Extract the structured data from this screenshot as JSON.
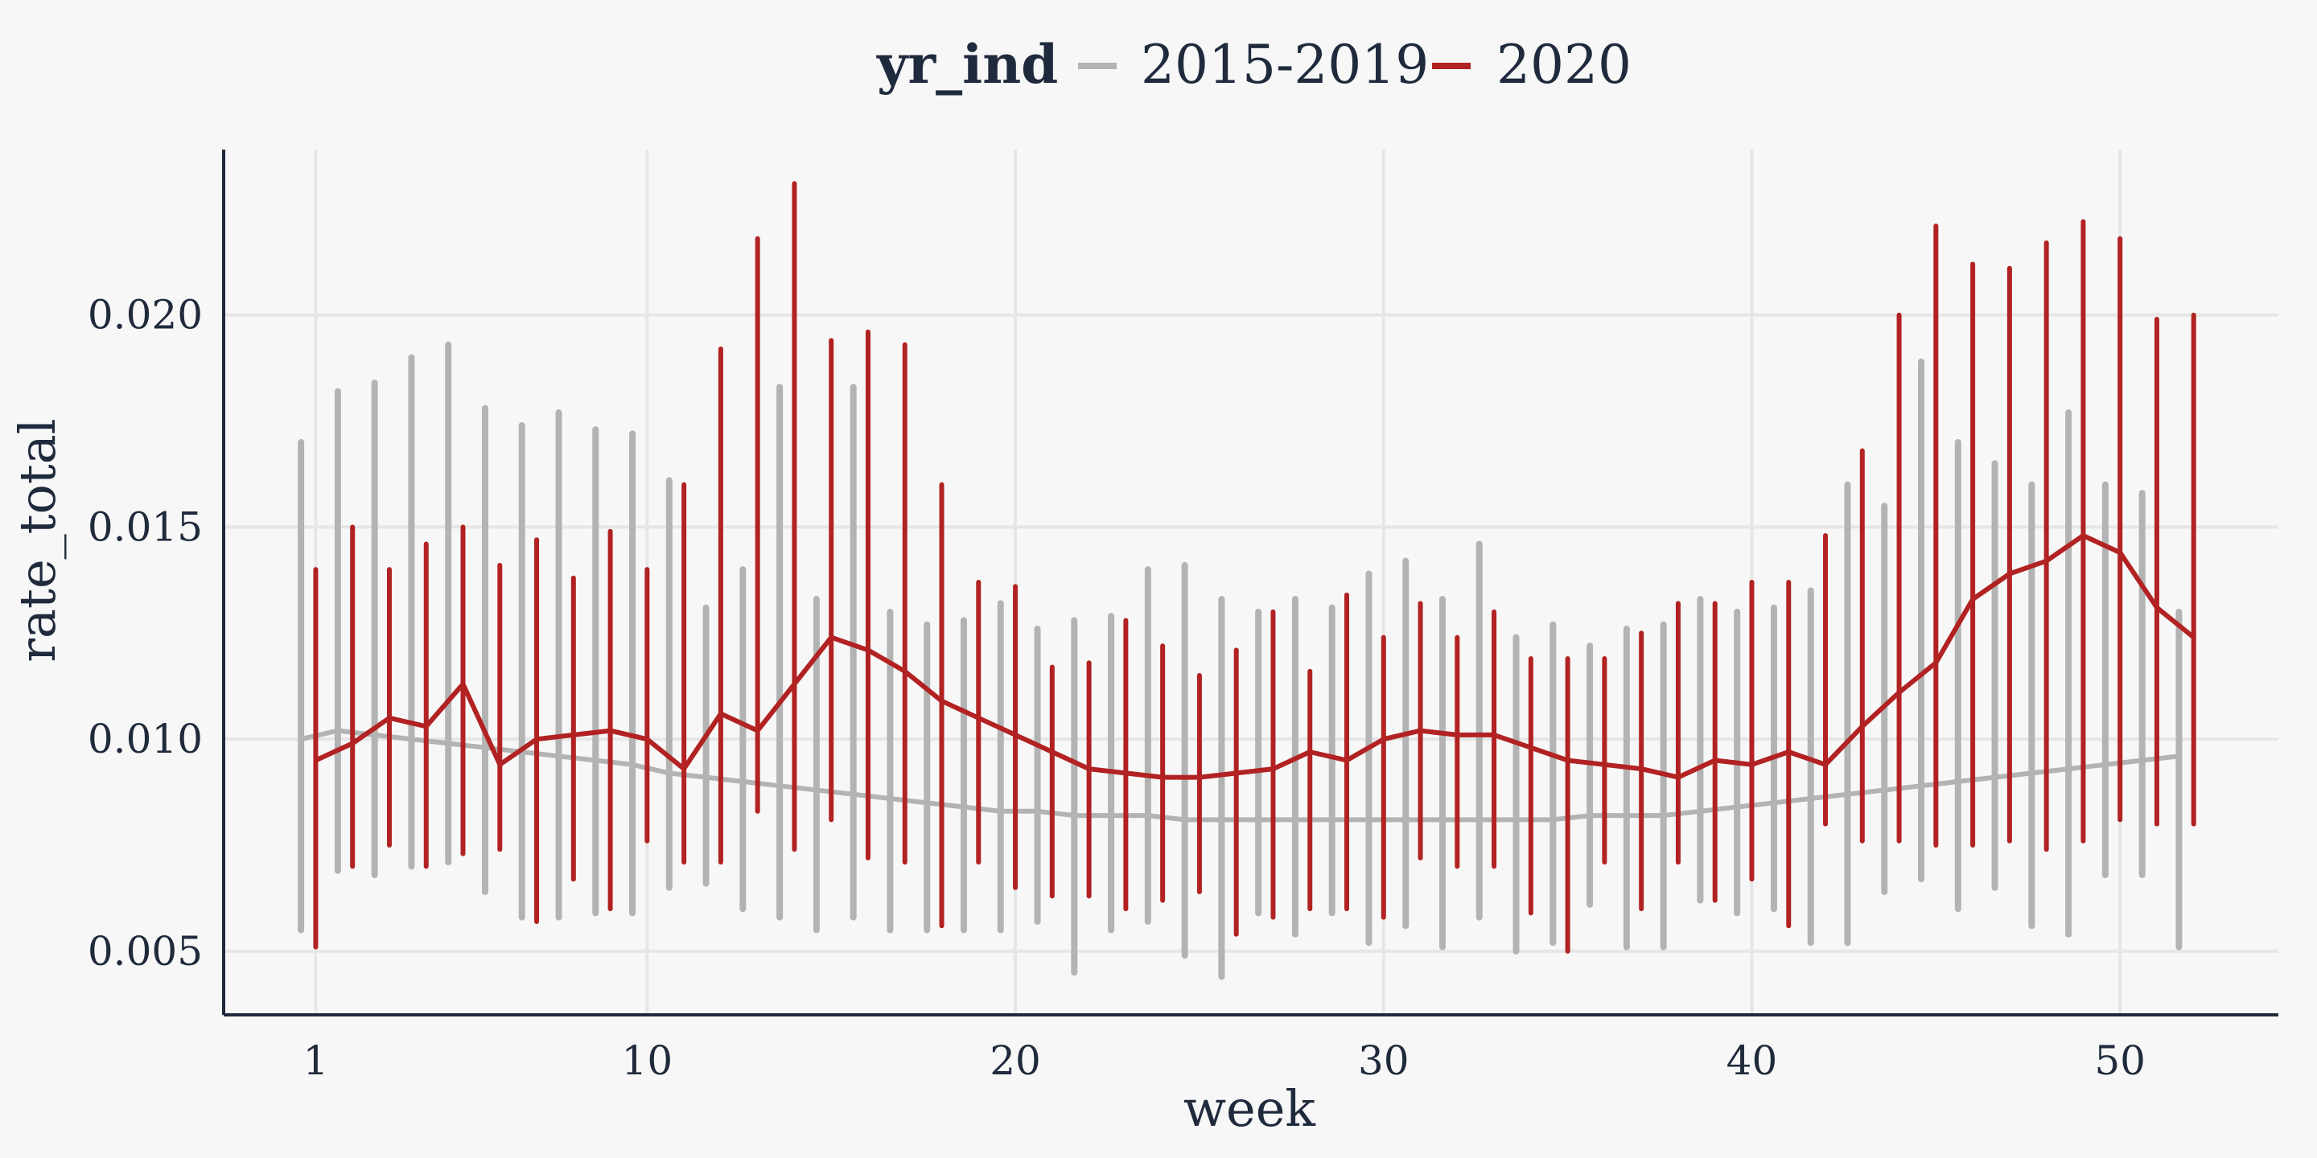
{
  "chart_data": {
    "type": "line",
    "xlabel": "week",
    "ylabel": "rate_total",
    "xlim": [
      -1.5,
      54.3
    ],
    "ylim": [
      0.0035,
      0.0239
    ],
    "x_ticks": [
      1,
      10,
      20,
      30,
      40,
      50
    ],
    "y_ticks": [
      0.005,
      0.01,
      0.015,
      0.02
    ],
    "y_tick_labels": [
      "0.005",
      "0.010",
      "0.015",
      "0.020"
    ],
    "x_tick_labels": [
      "1",
      "10",
      "20",
      "30",
      "40",
      "50"
    ],
    "grid": true,
    "legend": {
      "position": "top",
      "title": "yr_ind",
      "entries": [
        {
          "label": "2015-2019",
          "color": "#b3b3b3"
        },
        {
          "label": "2020",
          "color": "#b22222"
        }
      ]
    },
    "series": [
      {
        "name": "2015-2019",
        "color": "#b3b3b3",
        "x": [
          1,
          2,
          3,
          4,
          5,
          6,
          7,
          8,
          9,
          10,
          11,
          12,
          13,
          14,
          15,
          16,
          17,
          18,
          19,
          20,
          21,
          22,
          23,
          24,
          25,
          26,
          27,
          28,
          29,
          30,
          31,
          32,
          33,
          34,
          35,
          36,
          37,
          38,
          39,
          40,
          41,
          42,
          43,
          44,
          45,
          46,
          47,
          48,
          49,
          50,
          51,
          52
        ],
        "mean": [
          0.01,
          0.0102,
          0.0101,
          0.01,
          0.0099,
          0.0098,
          0.0097,
          0.0096,
          0.0095,
          0.0094,
          0.0092,
          0.0091,
          0.009,
          0.0089,
          0.0088,
          0.0087,
          0.0086,
          0.0085,
          0.0084,
          0.0083,
          0.0083,
          0.0082,
          0.0082,
          0.0082,
          0.0081,
          0.0081,
          0.0081,
          0.0081,
          0.0081,
          0.0081,
          0.0081,
          0.0081,
          0.0081,
          0.0081,
          0.0081,
          0.0082,
          0.0082,
          0.0082,
          0.0083,
          0.0084,
          0.0085,
          0.0086,
          0.0087,
          0.0088,
          0.0089,
          0.009,
          0.0091,
          0.0092,
          0.0093,
          0.0094,
          0.0095,
          0.0096
        ],
        "low": [
          0.0055,
          0.0069,
          0.0068,
          0.007,
          0.0071,
          0.0064,
          0.0058,
          0.0058,
          0.0059,
          0.0059,
          0.0065,
          0.0066,
          0.006,
          0.0058,
          0.0055,
          0.0058,
          0.0055,
          0.0055,
          0.0055,
          0.0055,
          0.0057,
          0.0045,
          0.0055,
          0.0057,
          0.0049,
          0.0044,
          0.0059,
          0.0054,
          0.0059,
          0.0052,
          0.0056,
          0.0051,
          0.0058,
          0.005,
          0.0052,
          0.0061,
          0.0051,
          0.0051,
          0.0062,
          0.0059,
          0.006,
          0.0052,
          0.0052,
          0.0064,
          0.0067,
          0.006,
          0.0065,
          0.0056,
          0.0054,
          0.0068,
          0.0068,
          0.0051
        ],
        "high": [
          0.017,
          0.0182,
          0.0184,
          0.019,
          0.0193,
          0.0178,
          0.0174,
          0.0177,
          0.0173,
          0.0172,
          0.0161,
          0.0131,
          0.014,
          0.0183,
          0.0133,
          0.0183,
          0.013,
          0.0127,
          0.0128,
          0.0132,
          0.0126,
          0.0128,
          0.0129,
          0.014,
          0.0141,
          0.0133,
          0.013,
          0.0133,
          0.0131,
          0.0139,
          0.0142,
          0.0133,
          0.0146,
          0.0124,
          0.0127,
          0.0122,
          0.0126,
          0.0127,
          0.0133,
          0.013,
          0.0131,
          0.0135,
          0.016,
          0.0155,
          0.0189,
          0.017,
          0.0165,
          0.016,
          0.0177,
          0.016,
          0.0158,
          0.013
        ]
      },
      {
        "name": "2020",
        "color": "#b22222",
        "x": [
          1,
          2,
          3,
          4,
          5,
          6,
          7,
          8,
          9,
          10,
          11,
          12,
          13,
          14,
          15,
          16,
          17,
          18,
          19,
          20,
          21,
          22,
          23,
          24,
          25,
          26,
          27,
          28,
          29,
          30,
          31,
          32,
          33,
          34,
          35,
          36,
          37,
          38,
          39,
          40,
          41,
          42,
          43,
          44,
          45,
          46,
          47,
          48,
          49,
          50,
          51,
          52
        ],
        "mean": [
          0.0095,
          0.0099,
          0.0105,
          0.0103,
          0.0113,
          0.0094,
          0.01,
          0.0101,
          0.0102,
          0.01,
          0.0093,
          0.0106,
          0.0102,
          0.0113,
          0.0124,
          0.0121,
          0.0116,
          0.0109,
          0.0105,
          0.0101,
          0.0097,
          0.0093,
          0.0092,
          0.0091,
          0.0091,
          0.0092,
          0.0093,
          0.0097,
          0.0095,
          0.01,
          0.0102,
          0.0101,
          0.0101,
          0.0098,
          0.0095,
          0.0094,
          0.0093,
          0.0091,
          0.0095,
          0.0094,
          0.0097,
          0.0094,
          0.0103,
          0.0111,
          0.0118,
          0.0133,
          0.0139,
          0.0142,
          0.0148,
          0.0144,
          0.0131,
          0.0124
        ],
        "low": [
          0.0051,
          0.007,
          0.0075,
          0.007,
          0.0073,
          0.0074,
          0.0057,
          0.0067,
          0.006,
          0.0076,
          0.0071,
          0.0071,
          0.0083,
          0.0074,
          0.0081,
          0.0072,
          0.0071,
          0.0056,
          0.0071,
          0.0065,
          0.0063,
          0.0063,
          0.006,
          0.0062,
          0.0064,
          0.0054,
          0.0058,
          0.006,
          0.006,
          0.0058,
          0.0072,
          0.007,
          0.007,
          0.0059,
          0.005,
          0.0071,
          0.006,
          0.0071,
          0.0062,
          0.0067,
          0.0056,
          0.008,
          0.0076,
          0.0076,
          0.0075,
          0.0075,
          0.0076,
          0.0074,
          0.0076,
          0.0081,
          0.008,
          0.008
        ],
        "high": [
          0.014,
          0.015,
          0.014,
          0.0146,
          0.015,
          0.0141,
          0.0147,
          0.0138,
          0.0149,
          0.014,
          0.016,
          0.0192,
          0.0218,
          0.0231,
          0.0194,
          0.0196,
          0.0193,
          0.016,
          0.0137,
          0.0136,
          0.0117,
          0.0118,
          0.0128,
          0.0122,
          0.0115,
          0.0121,
          0.013,
          0.0116,
          0.0134,
          0.0124,
          0.0132,
          0.0124,
          0.013,
          0.0119,
          0.0119,
          0.0119,
          0.0125,
          0.0132,
          0.0132,
          0.0137,
          0.0137,
          0.0148,
          0.0168,
          0.02,
          0.0221,
          0.0212,
          0.0211,
          0.0217,
          0.0222,
          0.0218,
          0.0199,
          0.02
        ]
      }
    ]
  }
}
